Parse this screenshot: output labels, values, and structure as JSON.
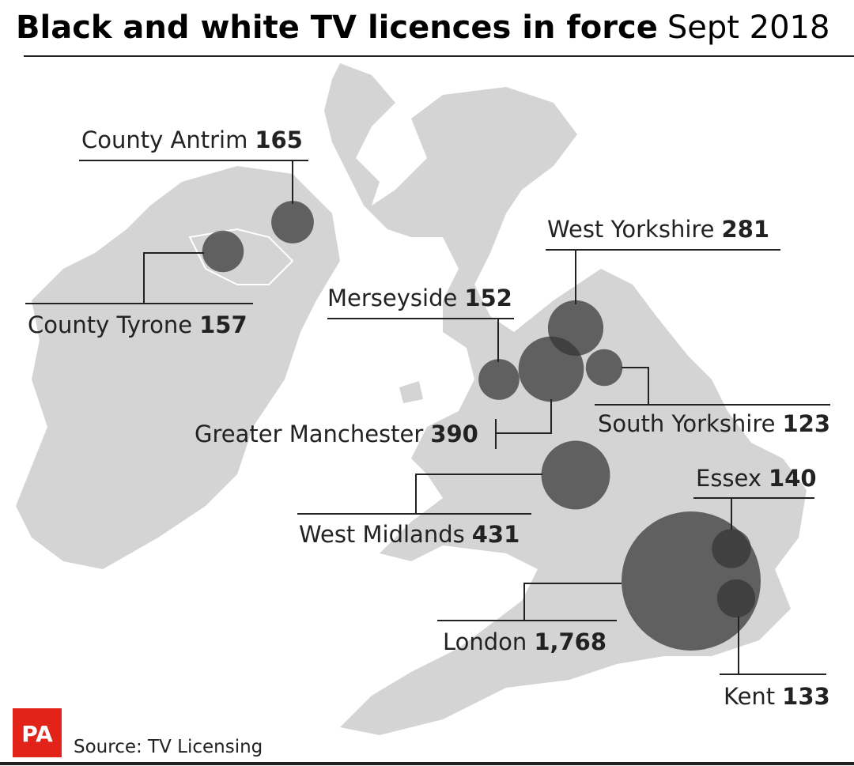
{
  "title": "Black and white TV licences in force",
  "subtitle": "Sept 2018",
  "regions": [
    {
      "name": "County Antrim",
      "value": 165
    },
    {
      "name": "County Tyrone",
      "value": 157
    },
    {
      "name": "West Yorkshire",
      "value": 281
    },
    {
      "name": "Merseyside",
      "value": 152
    },
    {
      "name": "Greater Manchester",
      "value": 390
    },
    {
      "name": "South Yorkshire",
      "value": 123
    },
    {
      "name": "West Midlands",
      "value": 431
    },
    {
      "name": "Essex",
      "value": 140
    },
    {
      "name": "London",
      "value": 1768,
      "value_label": "1,768"
    },
    {
      "name": "Kent",
      "value": 133
    }
  ],
  "logo": "PA",
  "source": "Source: TV Licensing"
}
